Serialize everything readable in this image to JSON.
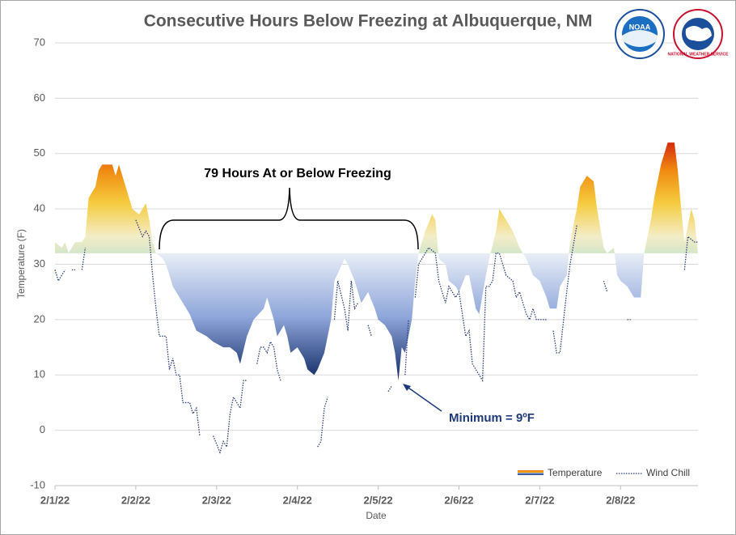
{
  "chart_data": {
    "type": "area-line",
    "title": "Consecutive Hours Below Freezing at Albuquerque, NM",
    "x_label": "Date",
    "y_label": "Temperature (F)",
    "annotations": {
      "span": "79 Hours At or Below Freezing",
      "minimum": "Minimum = 9ºF"
    },
    "logos": {
      "noaa": "NOAA",
      "nws": "NATIONAL WEATHER SERVICE"
    },
    "xlim": [
      0,
      191
    ],
    "xticks": [
      {
        "value": 0,
        "label": "2/1/22"
      },
      {
        "value": 24,
        "label": "2/2/22"
      },
      {
        "value": 48,
        "label": "2/3/22"
      },
      {
        "value": 72,
        "label": "2/4/22"
      },
      {
        "value": 96,
        "label": "2/5/22"
      },
      {
        "value": 120,
        "label": "2/6/22"
      },
      {
        "value": 144,
        "label": "2/7/22"
      },
      {
        "value": 168,
        "label": "2/8/22"
      }
    ],
    "ylim": [
      -10,
      70
    ],
    "yticks": [
      -10,
      0,
      10,
      20,
      30,
      40,
      50,
      60,
      70
    ],
    "grid": true,
    "area_baseline": 32,
    "legend": "bottom-right",
    "series": [
      {
        "name": "Temperature",
        "kind": "area",
        "color": "#f0a020",
        "x": [
          0,
          2,
          3,
          4,
          6,
          8,
          9,
          10,
          12,
          13,
          14,
          17,
          18,
          19,
          20,
          22,
          23,
          25,
          27,
          28,
          29,
          30,
          32,
          33,
          34,
          35,
          36,
          38,
          40,
          42,
          45,
          47,
          50,
          52,
          54,
          55,
          57,
          59,
          62,
          63,
          65,
          66,
          68,
          69,
          70,
          72,
          74,
          75,
          77,
          78,
          80,
          82,
          83,
          86,
          87,
          89,
          91,
          93,
          95,
          96,
          98,
          100,
          101,
          102,
          103,
          104,
          106,
          107,
          108,
          110,
          112,
          113,
          114,
          116,
          117,
          119,
          120,
          122,
          123,
          125,
          126,
          128,
          129,
          131,
          132,
          134,
          136,
          138,
          140,
          142,
          144,
          146,
          147,
          149,
          150,
          152,
          153,
          155,
          156,
          158,
          160,
          161,
          163,
          164,
          166,
          167,
          168,
          170,
          172,
          174,
          175,
          177,
          178,
          180,
          182,
          184,
          185,
          186,
          187,
          189,
          190,
          191
        ],
        "values": [
          34,
          33,
          34,
          32,
          34,
          34,
          35,
          42,
          44,
          47,
          48,
          48,
          46,
          48,
          46,
          42,
          40,
          39,
          41,
          38,
          34,
          32,
          31,
          30,
          28,
          26,
          25,
          23,
          21,
          18,
          17,
          16,
          15,
          15,
          14,
          12,
          17,
          20,
          22,
          24,
          20,
          17,
          19,
          17,
          14,
          15,
          13,
          11,
          10,
          11,
          14,
          20,
          27,
          31,
          30,
          27,
          23,
          25,
          22,
          20,
          19,
          17,
          14,
          9,
          15,
          14,
          20,
          27,
          32,
          36,
          39,
          38,
          31,
          30,
          27,
          26,
          25,
          28,
          28,
          22,
          21,
          28,
          31,
          36,
          40,
          38,
          36,
          33,
          31,
          28,
          27,
          24,
          22,
          22,
          26,
          28,
          34,
          40,
          44,
          46,
          45,
          40,
          33,
          32,
          33,
          28,
          27,
          26,
          24,
          24,
          32,
          38,
          42,
          48,
          52,
          52,
          47,
          40,
          34,
          40,
          38,
          32
        ]
      },
      {
        "name": "Wind Chill",
        "kind": "line",
        "color": "#2b3f7a",
        "x": [
          0,
          1,
          3,
          null,
          5,
          6,
          null,
          8,
          9,
          null,
          24,
          26,
          27,
          28,
          29,
          30,
          31,
          33,
          34,
          35,
          36,
          37,
          38,
          40,
          41,
          42,
          43,
          null,
          47,
          49,
          50,
          51,
          52,
          53,
          54,
          55,
          56,
          57,
          null,
          60,
          61,
          62,
          63,
          64,
          65,
          66,
          67,
          null,
          78,
          79,
          80,
          81,
          null,
          83,
          84,
          86,
          87,
          88,
          89,
          90,
          null,
          93,
          94,
          null,
          99,
          100,
          null,
          104,
          105,
          null,
          107,
          108,
          110,
          111,
          113,
          114,
          115,
          116,
          117,
          118,
          119,
          120,
          122,
          123,
          124,
          125,
          127,
          128,
          129,
          130,
          131,
          132,
          134,
          136,
          137,
          138,
          140,
          141,
          142,
          143,
          146,
          null,
          148,
          149,
          150,
          152,
          153,
          155,
          null,
          163,
          164,
          null,
          170,
          171,
          null,
          187,
          188,
          190,
          191
        ],
        "values": [
          29,
          27,
          29,
          null,
          29,
          29,
          null,
          29,
          33,
          null,
          38,
          35,
          36,
          35,
          28,
          22,
          17,
          17,
          11,
          13,
          10,
          10,
          5,
          5,
          3,
          4,
          -1,
          null,
          -1,
          -4,
          -2,
          -3,
          3,
          6,
          5,
          4,
          9,
          9,
          null,
          12,
          15,
          15,
          14,
          16,
          15,
          11,
          9,
          null,
          -3,
          -2,
          4,
          6,
          null,
          20,
          27,
          22,
          18,
          27,
          22,
          23,
          null,
          19,
          17,
          null,
          7,
          8,
          null,
          10,
          20,
          null,
          24,
          30,
          32,
          33,
          32,
          27,
          25,
          23,
          26,
          25,
          24,
          25,
          17,
          18,
          12,
          11,
          9,
          26,
          26,
          27,
          32,
          32,
          28,
          27,
          24,
          25,
          21,
          20,
          22,
          20,
          20,
          null,
          18,
          14,
          14,
          25,
          30,
          37,
          null,
          27,
          25,
          null,
          20,
          20,
          null,
          29,
          35,
          34,
          34
        ]
      }
    ]
  }
}
